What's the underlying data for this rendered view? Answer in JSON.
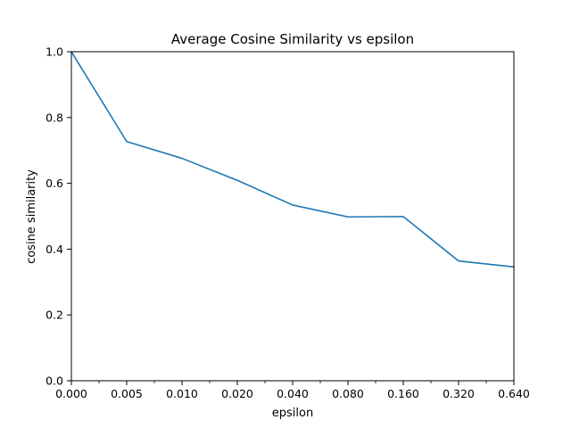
{
  "chart_data": {
    "type": "line",
    "title": "Average Cosine Similarity vs epsilon",
    "xlabel": "epsilon",
    "ylabel": "cosine similarity",
    "categories": [
      "0.000",
      "0.005",
      "0.010",
      "0.020",
      "0.040",
      "0.080",
      "0.160",
      "0.320",
      "0.640"
    ],
    "series": [
      {
        "values": [
          1.0,
          0.727,
          0.676,
          0.609,
          0.534,
          0.498,
          0.499,
          0.364,
          0.346
        ],
        "color": "#1f77b4"
      }
    ],
    "ylim": [
      0,
      1.0
    ],
    "yticks": [
      "0.0",
      "0.2",
      "0.4",
      "0.6",
      "0.8",
      "1.0"
    ],
    "grid": false,
    "legend": "none"
  }
}
